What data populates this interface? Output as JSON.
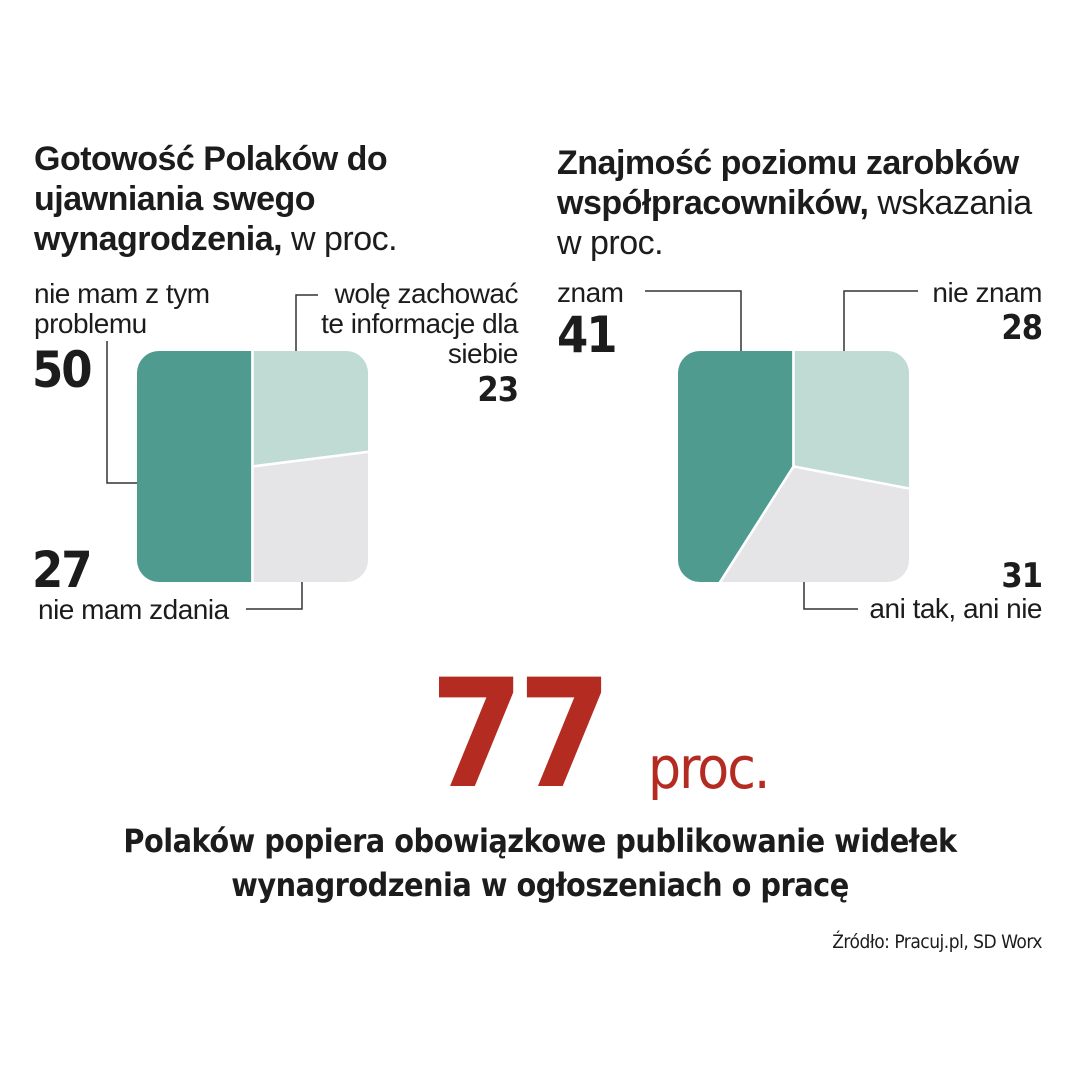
{
  "colors": {
    "primary": "#4f9b90",
    "secondary": "#bfdbd4",
    "tertiary": "#e5e5e7",
    "accent": "#b42b22",
    "leader": "#333333"
  },
  "chart_data": [
    {
      "type": "pie",
      "shape": "rounded-square",
      "title": "Gotowość Polaków do ujawniania swego wynagrodzenia,",
      "title_suffix": "w proc.",
      "slices": [
        {
          "label": "nie mam z tym problemu",
          "value": 50
        },
        {
          "label": "wolę zachować te informacje dla siebie",
          "value": 23
        },
        {
          "label": "nie mam zdania",
          "value": 27
        }
      ]
    },
    {
      "type": "pie",
      "shape": "rounded-square",
      "title": "Znajmość poziomu zarobków współpracowników,",
      "title_suffix": "wskazania w proc.",
      "slices": [
        {
          "label": "znam",
          "value": 41
        },
        {
          "label": "nie znam",
          "value": 28
        },
        {
          "label": "ani tak, ani nie",
          "value": 31
        }
      ]
    }
  ],
  "headline": {
    "number": "77",
    "unit": "proc.",
    "caption_line1": "Polaków popiera obowiązkowe publikowanie widełek",
    "caption_line2": "wynagrodzenia w ogłoszeniach o pracę"
  },
  "source": "Źródło: Pracuj.pl, SD Worx"
}
